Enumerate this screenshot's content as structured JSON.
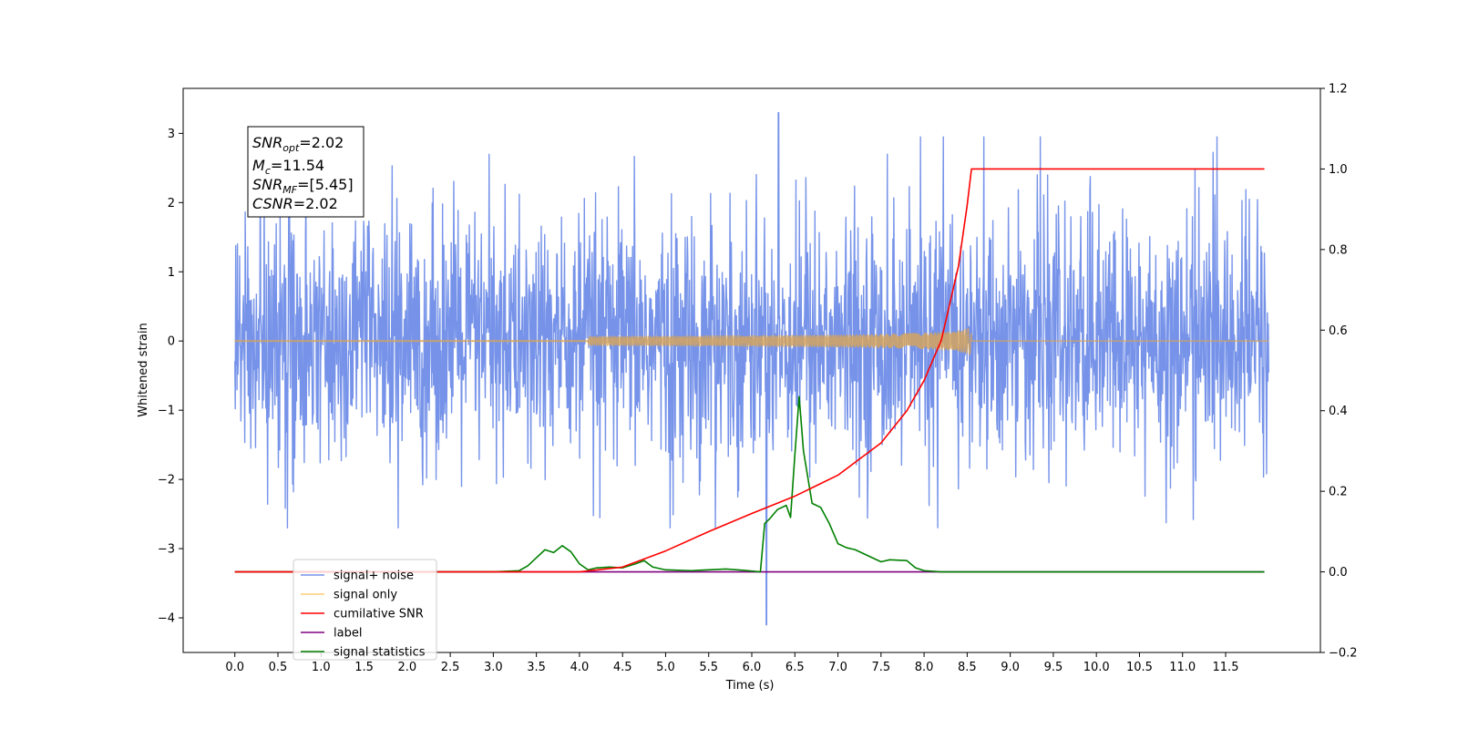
{
  "chart_data": {
    "type": "line",
    "title": "",
    "xlabel": "Time (s)",
    "ylabel": "Whitened strain",
    "xlim": [
      -0.6,
      12.6
    ],
    "ylim": [
      -4.5,
      3.65
    ],
    "y2lim": [
      -0.2,
      1.2
    ],
    "x_ticks": [
      0.0,
      0.5,
      1.0,
      1.5,
      2.0,
      2.5,
      3.0,
      3.5,
      4.0,
      4.5,
      5.0,
      5.5,
      6.0,
      6.5,
      7.0,
      7.5,
      8.0,
      8.5,
      9.0,
      9.5,
      10.0,
      10.5,
      11.0,
      11.5
    ],
    "x_tick_labels": [
      "0.0",
      "0.5",
      "1.0",
      "1.5",
      "2.0",
      "2.5",
      "3.0",
      "3.5",
      "4.0",
      "4.5",
      "5.0",
      "5.5",
      "6.0",
      "6.5",
      "7.0",
      "7.5",
      "8.0",
      "8.5",
      "9.0",
      "9.5",
      "10.0",
      "10.5",
      "11.0",
      "11.5"
    ],
    "y_ticks": [
      3,
      2,
      1,
      0,
      -1,
      -2,
      -3,
      -4
    ],
    "y_tick_labels": [
      "3",
      "2",
      "1",
      "0",
      "−1",
      "−2",
      "−3",
      "−4"
    ],
    "y2_ticks": [
      1.2,
      1.0,
      0.8,
      0.6,
      0.4,
      0.2,
      0.0,
      -0.2
    ],
    "y2_tick_labels": [
      "1.2",
      "1.0",
      "0.8",
      "0.6",
      "0.4",
      "0.2",
      "0.0",
      "−0.2"
    ],
    "grid": false,
    "legend_position": "lower-left",
    "noise_band": {
      "x_start": 0.0,
      "x_end": 12.0,
      "typical_low": -1.6,
      "typical_high": 1.6,
      "peak_max": 3.3,
      "peak_min": -4.1
    },
    "series": [
      {
        "name": "signal+ noise",
        "color": "#4169e1",
        "axis": "left",
        "style": "noise"
      },
      {
        "name": "signal only",
        "color": "#ffa500",
        "axis": "left",
        "style": "chirp",
        "chirp_end_x": 8.55,
        "chirp_peak_amplitude": 0.22
      },
      {
        "name": "cumilative SNR",
        "color": "#ff0000",
        "axis": "right",
        "x": [
          0.0,
          4.0,
          4.5,
          5.0,
          5.5,
          6.0,
          6.5,
          7.0,
          7.5,
          7.8,
          8.0,
          8.2,
          8.4,
          8.5,
          8.55,
          11.95
        ],
        "values": [
          0.0,
          0.0,
          0.012,
          0.052,
          0.1,
          0.145,
          0.188,
          0.24,
          0.32,
          0.4,
          0.475,
          0.575,
          0.76,
          0.91,
          1.0,
          1.0
        ]
      },
      {
        "name": "label",
        "color": "#800080",
        "axis": "right",
        "x": [
          0.0,
          11.95
        ],
        "values": [
          0.0,
          0.0
        ]
      },
      {
        "name": "signal statistics",
        "color": "#008000",
        "axis": "right",
        "x": [
          0.0,
          3.0,
          3.3,
          3.4,
          3.5,
          3.6,
          3.7,
          3.8,
          3.9,
          4.0,
          4.1,
          4.2,
          4.35,
          4.5,
          4.65,
          4.75,
          4.85,
          5.0,
          5.3,
          5.7,
          5.9,
          6.1,
          6.15,
          6.2,
          6.3,
          6.4,
          6.45,
          6.5,
          6.55,
          6.6,
          6.7,
          6.8,
          6.9,
          7.0,
          7.1,
          7.2,
          7.4,
          7.5,
          7.6,
          7.8,
          7.9,
          8.0,
          8.2,
          9.0,
          11.95
        ],
        "values": [
          0.0,
          0.0,
          0.003,
          0.015,
          0.035,
          0.055,
          0.048,
          0.065,
          0.05,
          0.02,
          0.005,
          0.01,
          0.012,
          0.01,
          0.02,
          0.028,
          0.012,
          0.005,
          0.003,
          0.007,
          0.004,
          0.0,
          0.12,
          0.13,
          0.155,
          0.165,
          0.135,
          0.29,
          0.435,
          0.3,
          0.17,
          0.16,
          0.12,
          0.07,
          0.06,
          0.055,
          0.035,
          0.025,
          0.03,
          0.028,
          0.01,
          0.003,
          0.0,
          0.0,
          0.0
        ]
      }
    ],
    "legend_entries": [
      "signal+ noise",
      "signal only",
      "cumilative SNR",
      "label",
      "signal statistics"
    ]
  },
  "annotation": {
    "lines": [
      {
        "sym": "SNR",
        "sub": "opt",
        "value": "=2.02"
      },
      {
        "sym": "M",
        "sub": "c",
        "value": "=11.54"
      },
      {
        "sym": "SNR",
        "sub": "MF",
        "value": "=[5.45]"
      },
      {
        "sym": "CSNR",
        "sub": "",
        "value": "=2.02"
      }
    ]
  }
}
